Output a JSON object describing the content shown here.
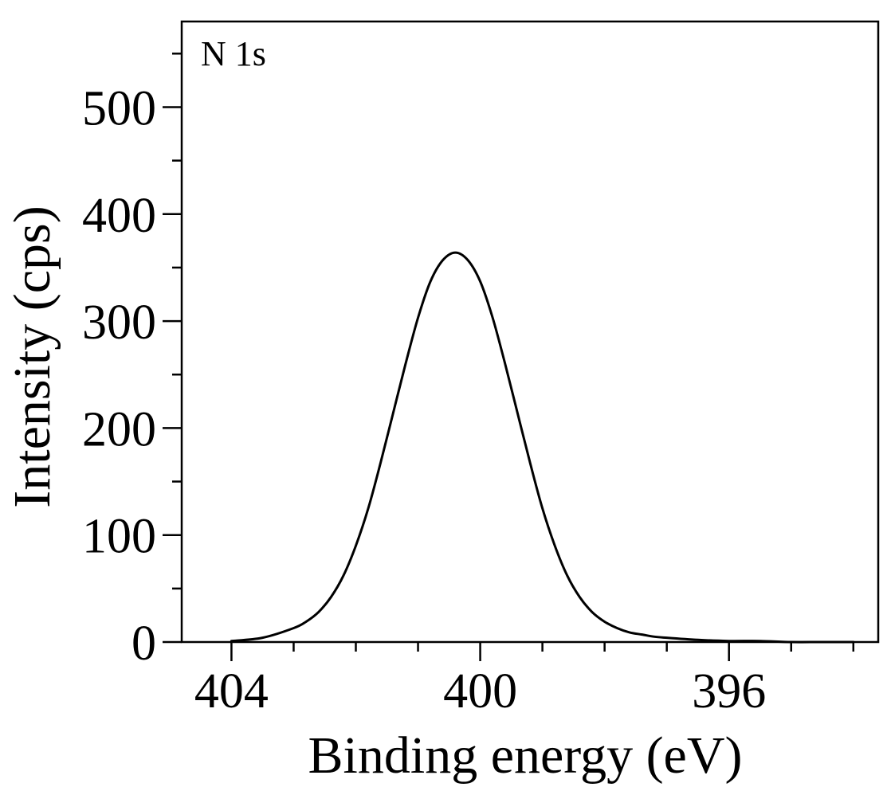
{
  "chart_data": {
    "type": "line",
    "annotation": "N 1s",
    "xlabel": "Binding energy (eV)",
    "ylabel": "Intensity (cps)",
    "xlim": [
      404.8,
      393.6
    ],
    "ylim": [
      0,
      580
    ],
    "x_reversed": true,
    "grid": false,
    "legend": "none",
    "x_ticks": [
      404,
      400,
      396
    ],
    "x_tick_labels": [
      "404",
      "400",
      "396"
    ],
    "x_minor_step": 1,
    "y_ticks": [
      0,
      100,
      200,
      300,
      400,
      500
    ],
    "y_tick_labels": [
      "0",
      "100",
      "200",
      "300",
      "400",
      "500"
    ],
    "y_minor_step": 50,
    "line_color": "#000000",
    "series": [
      {
        "x": [
          404.0,
          403.5,
          403.0,
          402.8,
          402.6,
          402.4,
          402.2,
          402.0,
          401.8,
          401.6,
          401.4,
          401.2,
          401.0,
          400.8,
          400.6,
          400.4,
          400.2,
          400.0,
          399.8,
          399.6,
          399.4,
          399.2,
          399.0,
          398.8,
          398.6,
          398.4,
          398.2,
          398.0,
          397.8,
          397.6,
          397.4,
          397.2,
          397.0,
          396.5,
          396.0,
          395.5,
          395.0,
          394.5,
          394.0
        ],
        "y": [
          1,
          4,
          13,
          19,
          28,
          42,
          62,
          90,
          125,
          168,
          214,
          260,
          303,
          337,
          357,
          364,
          357,
          337,
          303,
          260,
          214,
          168,
          125,
          90,
          62,
          42,
          28,
          19,
          13,
          9,
          7,
          5,
          4,
          2,
          1,
          1,
          0,
          0,
          0
        ]
      }
    ]
  }
}
